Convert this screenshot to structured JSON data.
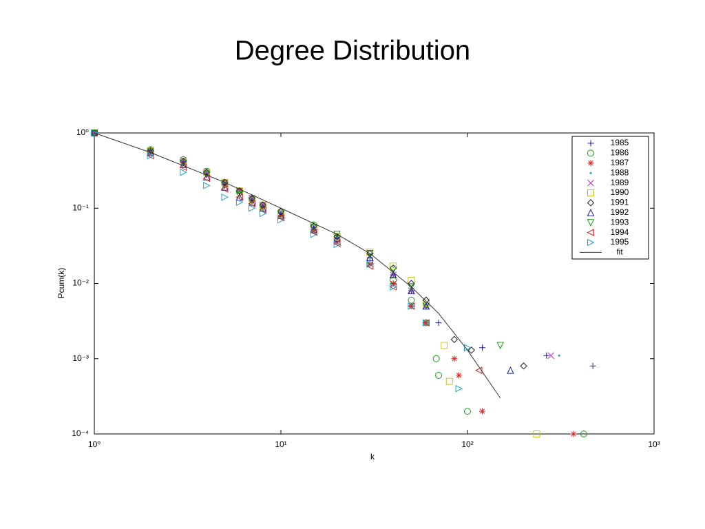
{
  "chart_data": {
    "type": "scatter",
    "title": "Degree Distribution",
    "xlabel": "k",
    "ylabel": "Pcum(k)",
    "xscale": "log",
    "yscale": "log",
    "xlim": [
      1,
      1000
    ],
    "ylim": [
      0.0001,
      1
    ],
    "xticks": [
      {
        "value": 1,
        "label": "10⁰"
      },
      {
        "value": 10,
        "label": "10¹"
      },
      {
        "value": 100,
        "label": "10²"
      },
      {
        "value": 1000,
        "label": "10³"
      }
    ],
    "yticks": [
      {
        "value": 0.0001,
        "label": "10⁻⁴"
      },
      {
        "value": 0.001,
        "label": "10⁻³"
      },
      {
        "value": 0.01,
        "label": "10⁻²"
      },
      {
        "value": 0.1,
        "label": "10⁻¹"
      },
      {
        "value": 1,
        "label": "10⁰"
      }
    ],
    "legend_position": "upper right",
    "series": [
      {
        "name": "1985",
        "color": "#1a1aa6",
        "marker": "plus",
        "x": [
          1,
          2,
          3,
          4,
          5,
          6,
          7,
          8,
          10,
          15,
          20,
          30,
          40,
          50,
          60,
          70,
          120,
          265,
          470
        ],
        "values": [
          1,
          0.58,
          0.42,
          0.3,
          0.22,
          0.17,
          0.135,
          0.11,
          0.085,
          0.055,
          0.04,
          0.022,
          0.013,
          0.008,
          0.005,
          0.003,
          0.0014,
          0.0011,
          0.0008
        ]
      },
      {
        "name": "1986",
        "color": "#1a9a1a",
        "marker": "circle",
        "x": [
          1,
          2,
          3,
          4,
          5,
          6,
          7,
          8,
          10,
          15,
          20,
          30,
          40,
          50,
          60,
          68,
          70,
          100,
          420
        ],
        "values": [
          1,
          0.6,
          0.44,
          0.31,
          0.22,
          0.17,
          0.13,
          0.11,
          0.09,
          0.06,
          0.04,
          0.02,
          0.011,
          0.006,
          0.003,
          0.001,
          0.0006,
          0.0002,
          0.0001
        ]
      },
      {
        "name": "1987",
        "color": "#d42020",
        "marker": "star",
        "x": [
          1,
          2,
          3,
          4,
          5,
          6,
          7,
          8,
          10,
          15,
          20,
          30,
          40,
          50,
          60,
          85,
          90,
          120,
          370
        ],
        "values": [
          1,
          0.57,
          0.41,
          0.29,
          0.21,
          0.17,
          0.13,
          0.105,
          0.08,
          0.05,
          0.035,
          0.018,
          0.01,
          0.005,
          0.003,
          0.001,
          0.0006,
          0.0002,
          0.0001
        ]
      },
      {
        "name": "1988",
        "color": "#20a0a0",
        "marker": "point",
        "x": [
          1,
          2,
          3,
          4,
          5,
          6,
          7,
          8,
          10,
          15,
          20,
          30,
          40,
          50,
          60,
          310
        ],
        "values": [
          1,
          0.58,
          0.42,
          0.3,
          0.22,
          0.17,
          0.135,
          0.11,
          0.085,
          0.057,
          0.042,
          0.024,
          0.014,
          0.008,
          0.005,
          0.0011
        ]
      },
      {
        "name": "1989",
        "color": "#c030c0",
        "marker": "x",
        "x": [
          1,
          2,
          3,
          4,
          5,
          6,
          7,
          8,
          10,
          15,
          20,
          30,
          40,
          50,
          60,
          280
        ],
        "values": [
          1,
          0.58,
          0.43,
          0.3,
          0.22,
          0.17,
          0.135,
          0.11,
          0.085,
          0.056,
          0.041,
          0.023,
          0.013,
          0.008,
          0.005,
          0.0011
        ]
      },
      {
        "name": "1990",
        "color": "#c8c020",
        "marker": "square",
        "x": [
          1,
          2,
          3,
          4,
          5,
          6,
          7,
          8,
          10,
          15,
          20,
          30,
          40,
          50,
          60,
          75,
          80,
          235
        ],
        "values": [
          1,
          0.58,
          0.42,
          0.3,
          0.22,
          0.17,
          0.135,
          0.11,
          0.085,
          0.056,
          0.042,
          0.026,
          0.017,
          0.011,
          0.0055,
          0.0015,
          0.0005,
          0.0001
        ]
      },
      {
        "name": "1991",
        "color": "#222222",
        "marker": "diamond",
        "x": [
          1,
          2,
          3,
          4,
          5,
          6,
          7,
          8,
          10,
          15,
          20,
          30,
          40,
          50,
          60,
          85,
          105,
          200
        ],
        "values": [
          1,
          0.58,
          0.42,
          0.3,
          0.22,
          0.17,
          0.135,
          0.11,
          0.09,
          0.058,
          0.042,
          0.025,
          0.016,
          0.01,
          0.006,
          0.0018,
          0.0013,
          0.0008
        ]
      },
      {
        "name": "1992",
        "color": "#1a1aa6",
        "marker": "triangle-up",
        "x": [
          1,
          2,
          3,
          4,
          5,
          6,
          7,
          8,
          10,
          15,
          20,
          30,
          40,
          50,
          60,
          170
        ],
        "values": [
          1,
          0.55,
          0.38,
          0.26,
          0.19,
          0.14,
          0.12,
          0.1,
          0.08,
          0.052,
          0.04,
          0.022,
          0.013,
          0.008,
          0.005,
          0.0007
        ]
      },
      {
        "name": "1993",
        "color": "#1a9a1a",
        "marker": "triangle-down",
        "x": [
          1,
          2,
          3,
          4,
          5,
          6,
          7,
          8,
          10,
          15,
          20,
          30,
          40,
          50,
          60,
          150
        ],
        "values": [
          1,
          0.56,
          0.4,
          0.28,
          0.2,
          0.15,
          0.125,
          0.1,
          0.082,
          0.055,
          0.045,
          0.025,
          0.015,
          0.009,
          0.005,
          0.0015
        ]
      },
      {
        "name": "1994",
        "color": "#d42020",
        "marker": "triangle-left",
        "x": [
          1,
          2,
          3,
          4,
          5,
          6,
          7,
          8,
          10,
          15,
          20,
          30,
          40,
          50,
          60,
          115
        ],
        "values": [
          1,
          0.5,
          0.35,
          0.25,
          0.18,
          0.14,
          0.115,
          0.095,
          0.075,
          0.048,
          0.034,
          0.017,
          0.009,
          0.005,
          0.003,
          0.0007
        ]
      },
      {
        "name": "1995",
        "color": "#20a0c8",
        "marker": "triangle-right",
        "x": [
          1,
          2,
          3,
          4,
          5,
          6,
          7,
          8,
          10,
          15,
          20,
          30,
          40,
          50,
          60,
          90,
          100
        ],
        "values": [
          1,
          0.5,
          0.3,
          0.2,
          0.14,
          0.12,
          0.1,
          0.085,
          0.07,
          0.045,
          0.033,
          0.018,
          0.009,
          0.005,
          0.003,
          0.0004,
          0.0014
        ]
      }
    ],
    "fit": {
      "name": "fit",
      "color": "#333333",
      "x": [
        1,
        2,
        5,
        10,
        20,
        30,
        50,
        70,
        100,
        150
      ],
      "values": [
        1,
        0.55,
        0.22,
        0.1,
        0.045,
        0.025,
        0.009,
        0.004,
        0.0013,
        0.0003
      ]
    }
  }
}
